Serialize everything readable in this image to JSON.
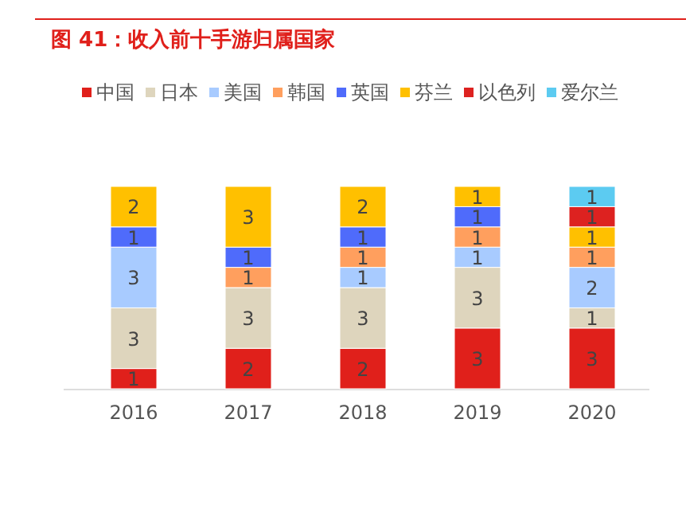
{
  "chart_data": {
    "type": "bar",
    "title": "图 41：收入前十手游归属国家",
    "categories": [
      "2016",
      "2017",
      "2018",
      "2019",
      "2020"
    ],
    "stacked": true,
    "data_labels": true,
    "legend": "top",
    "series": [
      {
        "name": "中国",
        "color": "#e0201b",
        "values": [
          1,
          2,
          2,
          3,
          3
        ]
      },
      {
        "name": "日本",
        "color": "#ded5bd",
        "values": [
          3,
          3,
          3,
          3,
          1
        ]
      },
      {
        "name": "美国",
        "color": "#a8cbff",
        "values": [
          3,
          null,
          1,
          1,
          2
        ]
      },
      {
        "name": "韩国",
        "color": "#ff9f5e",
        "values": [
          null,
          1,
          1,
          1,
          1
        ]
      },
      {
        "name": "英国",
        "color": "#4f6bfb",
        "values": [
          1,
          1,
          1,
          1,
          null
        ]
      },
      {
        "name": "芬兰",
        "color": "#ffc000",
        "values": [
          2,
          3,
          2,
          1,
          1
        ]
      },
      {
        "name": "以色列",
        "color": "#dd2220",
        "values": [
          null,
          null,
          null,
          null,
          1
        ]
      },
      {
        "name": "爱尔兰",
        "color": "#5ccbf1",
        "values": [
          null,
          null,
          null,
          null,
          1
        ]
      }
    ]
  }
}
